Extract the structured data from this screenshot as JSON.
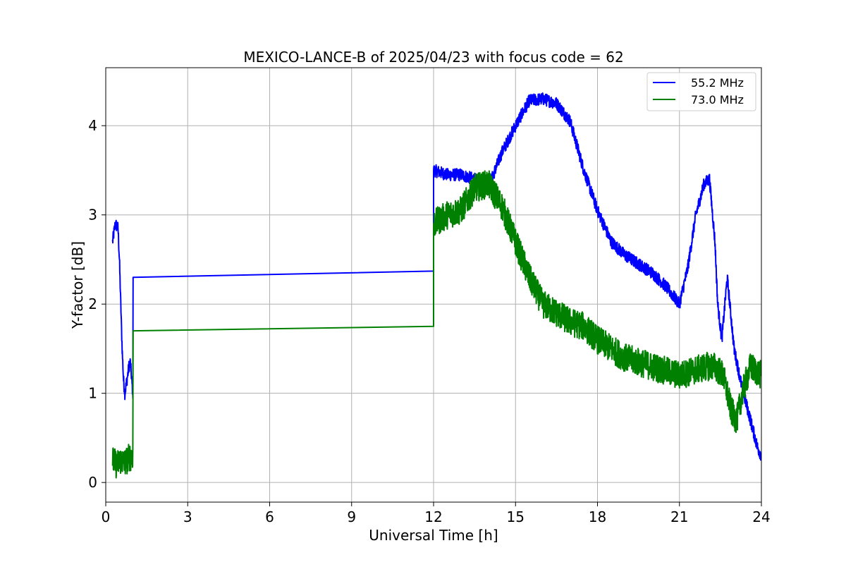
{
  "chart_data": {
    "type": "line",
    "title": "MEXICO-LANCE-B of 2025/04/23 with focus code = 62",
    "xlabel": "Universal Time [h]",
    "ylabel": "Y-factor [dB]",
    "xlim": [
      0,
      24
    ],
    "ylim": [
      -0.22,
      4.65
    ],
    "xticks": [
      0,
      3,
      6,
      9,
      12,
      15,
      18,
      21,
      24
    ],
    "yticks": [
      0,
      1,
      2,
      3,
      4
    ],
    "grid": true,
    "legend_position": "top-right",
    "series": [
      {
        "name": "55.2 MHz",
        "color": "#0000ff",
        "noise": 0.07,
        "x": [
          0.25,
          0.35,
          0.45,
          0.5,
          0.55,
          0.6,
          0.65,
          0.7,
          0.75,
          0.8,
          0.85,
          0.9,
          0.95,
          0.99,
          1.0,
          12.0,
          12.0,
          12.5,
          13.0,
          13.5,
          14.0,
          14.5,
          15.0,
          15.5,
          16.0,
          16.5,
          17.0,
          17.5,
          18.0,
          18.5,
          19.0,
          19.5,
          20.0,
          20.5,
          21.0,
          21.3,
          21.6,
          21.9,
          22.1,
          22.3,
          22.4,
          22.55,
          22.75,
          23.0,
          23.3,
          23.6,
          23.85,
          24.0
        ],
        "y": [
          2.7,
          2.9,
          2.85,
          2.5,
          2.0,
          1.5,
          1.15,
          1.0,
          1.1,
          1.2,
          1.3,
          1.35,
          1.15,
          1.0,
          2.3,
          2.37,
          3.5,
          3.45,
          3.45,
          3.4,
          3.3,
          3.7,
          4.0,
          4.28,
          4.3,
          4.25,
          4.05,
          3.5,
          3.05,
          2.7,
          2.55,
          2.45,
          2.35,
          2.2,
          2.0,
          2.4,
          3.0,
          3.35,
          3.4,
          2.7,
          2.0,
          1.6,
          2.3,
          1.5,
          1.05,
          0.7,
          0.4,
          0.3
        ]
      },
      {
        "name": "73.0 MHz",
        "color": "#008000",
        "noise": 0.16,
        "x": [
          0.25,
          0.4,
          0.55,
          0.7,
          0.85,
          0.99,
          1.0,
          12.0,
          12.0,
          12.5,
          13.0,
          13.5,
          14.0,
          14.5,
          15.0,
          15.5,
          16.0,
          16.5,
          17.0,
          17.5,
          18.0,
          18.5,
          19.0,
          19.5,
          20.0,
          20.5,
          21.0,
          21.5,
          22.0,
          22.3,
          22.6,
          22.9,
          23.1,
          23.3,
          23.6,
          24.0
        ],
        "y": [
          0.25,
          0.2,
          0.25,
          0.22,
          0.28,
          0.3,
          1.7,
          1.75,
          2.9,
          3.0,
          3.05,
          3.3,
          3.35,
          3.1,
          2.7,
          2.3,
          2.0,
          1.9,
          1.8,
          1.75,
          1.6,
          1.5,
          1.4,
          1.35,
          1.3,
          1.25,
          1.2,
          1.25,
          1.3,
          1.3,
          1.2,
          0.8,
          0.7,
          1.0,
          1.3,
          1.2
        ]
      }
    ]
  }
}
